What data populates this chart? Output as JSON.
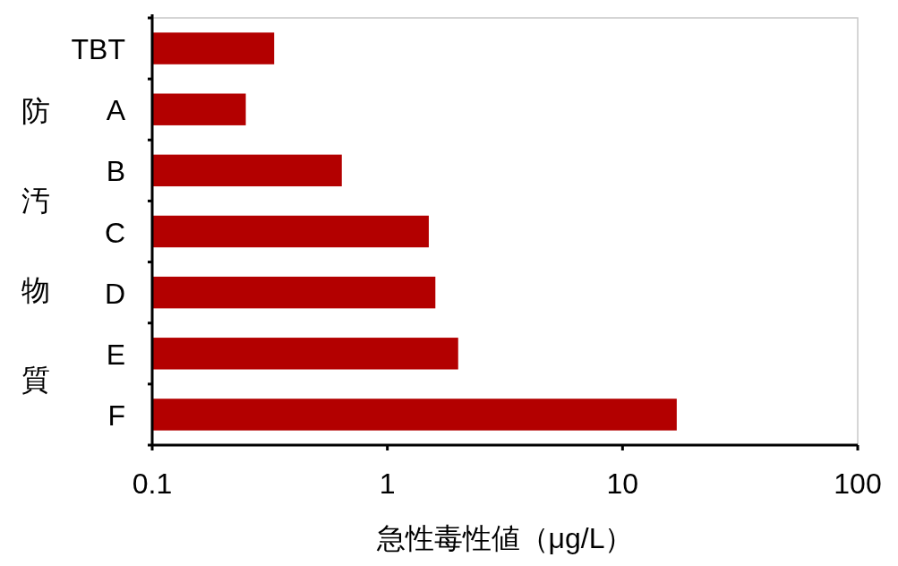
{
  "chart_data": {
    "type": "bar",
    "orientation": "horizontal",
    "log": "x",
    "xlabel": "急性毒性値（μg/L）",
    "ylabel": "防汚物質",
    "categories": [
      "TBT",
      "A",
      "B",
      "C",
      "D",
      "E",
      "F"
    ],
    "values": [
      0.33,
      0.25,
      0.64,
      1.5,
      1.6,
      2.0,
      17
    ],
    "color": "#b30000",
    "xlim": [
      0.1,
      100
    ],
    "xticks": [
      0.1,
      1,
      10,
      100
    ],
    "grid": false
  }
}
